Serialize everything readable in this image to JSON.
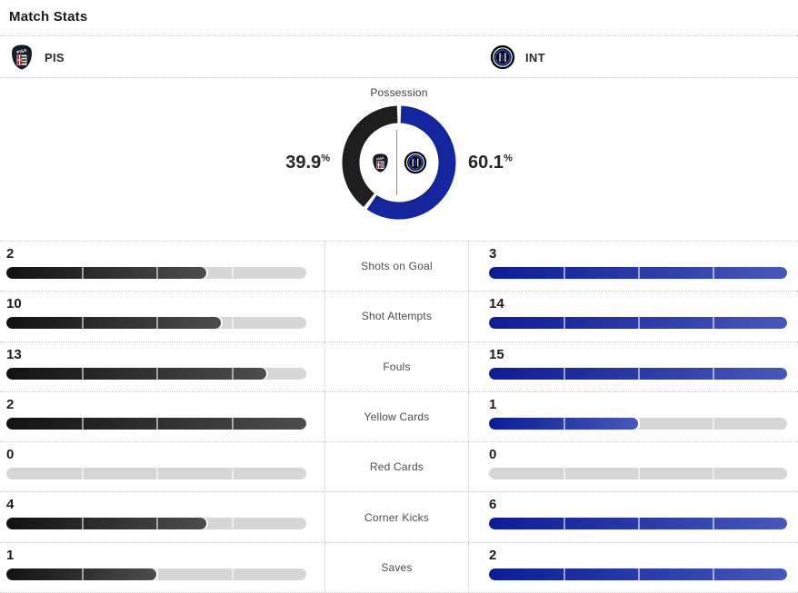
{
  "title": "Match Stats",
  "teams": {
    "home": {
      "abbr": "PIS",
      "logo": "pisa-crest"
    },
    "away": {
      "abbr": "INT",
      "logo": "inter-crest"
    }
  },
  "possession": {
    "label": "Possession",
    "home": {
      "value": 39.9,
      "display": "39.9",
      "unit": "%"
    },
    "away": {
      "value": 60.1,
      "display": "60.1",
      "unit": "%"
    }
  },
  "stats": [
    {
      "label": "Shots on Goal",
      "home": 2,
      "away": 3
    },
    {
      "label": "Shot Attempts",
      "home": 10,
      "away": 14
    },
    {
      "label": "Fouls",
      "home": 13,
      "away": 15
    },
    {
      "label": "Yellow Cards",
      "home": 2,
      "away": 1
    },
    {
      "label": "Red Cards",
      "home": 0,
      "away": 0
    },
    {
      "label": "Corner Kicks",
      "home": 4,
      "away": 6
    },
    {
      "label": "Saves",
      "home": 1,
      "away": 2
    }
  ],
  "colors": {
    "home_bar_gradient": [
      "#121212",
      "#4d4d4d"
    ],
    "away_bar_gradient": [
      "#0c1c96",
      "#4757ba"
    ],
    "bar_track": "#d6d6d6",
    "possession_home": "#1e1e1e",
    "possession_away": "#14269e",
    "dotted_border": "#c9c9c9"
  },
  "chart_data": [
    {
      "type": "pie",
      "title": "Possession",
      "labels": [
        "PIS",
        "INT"
      ],
      "values": [
        39.9,
        60.1
      ],
      "colors": [
        "#1e1e1e",
        "#14269e"
      ],
      "style": "donut, starts at 12 o'clock, INT clockwise on right side, small white gaps at junctions, team logos in center"
    },
    {
      "type": "bar",
      "categories": [
        "Shots on Goal",
        "Shot Attempts",
        "Fouls",
        "Yellow Cards",
        "Red Cards",
        "Corner Kicks",
        "Saves"
      ],
      "series": [
        {
          "name": "PIS",
          "values": [
            2,
            10,
            13,
            2,
            0,
            4,
            1
          ]
        },
        {
          "name": "INT",
          "values": [
            3,
            14,
            15,
            1,
            0,
            6,
            2
          ]
        }
      ],
      "layout": "paired horizontal bars, label centered between; fill fraction = value / max(PIS, INT) per category; 4-segment tracks"
    }
  ]
}
